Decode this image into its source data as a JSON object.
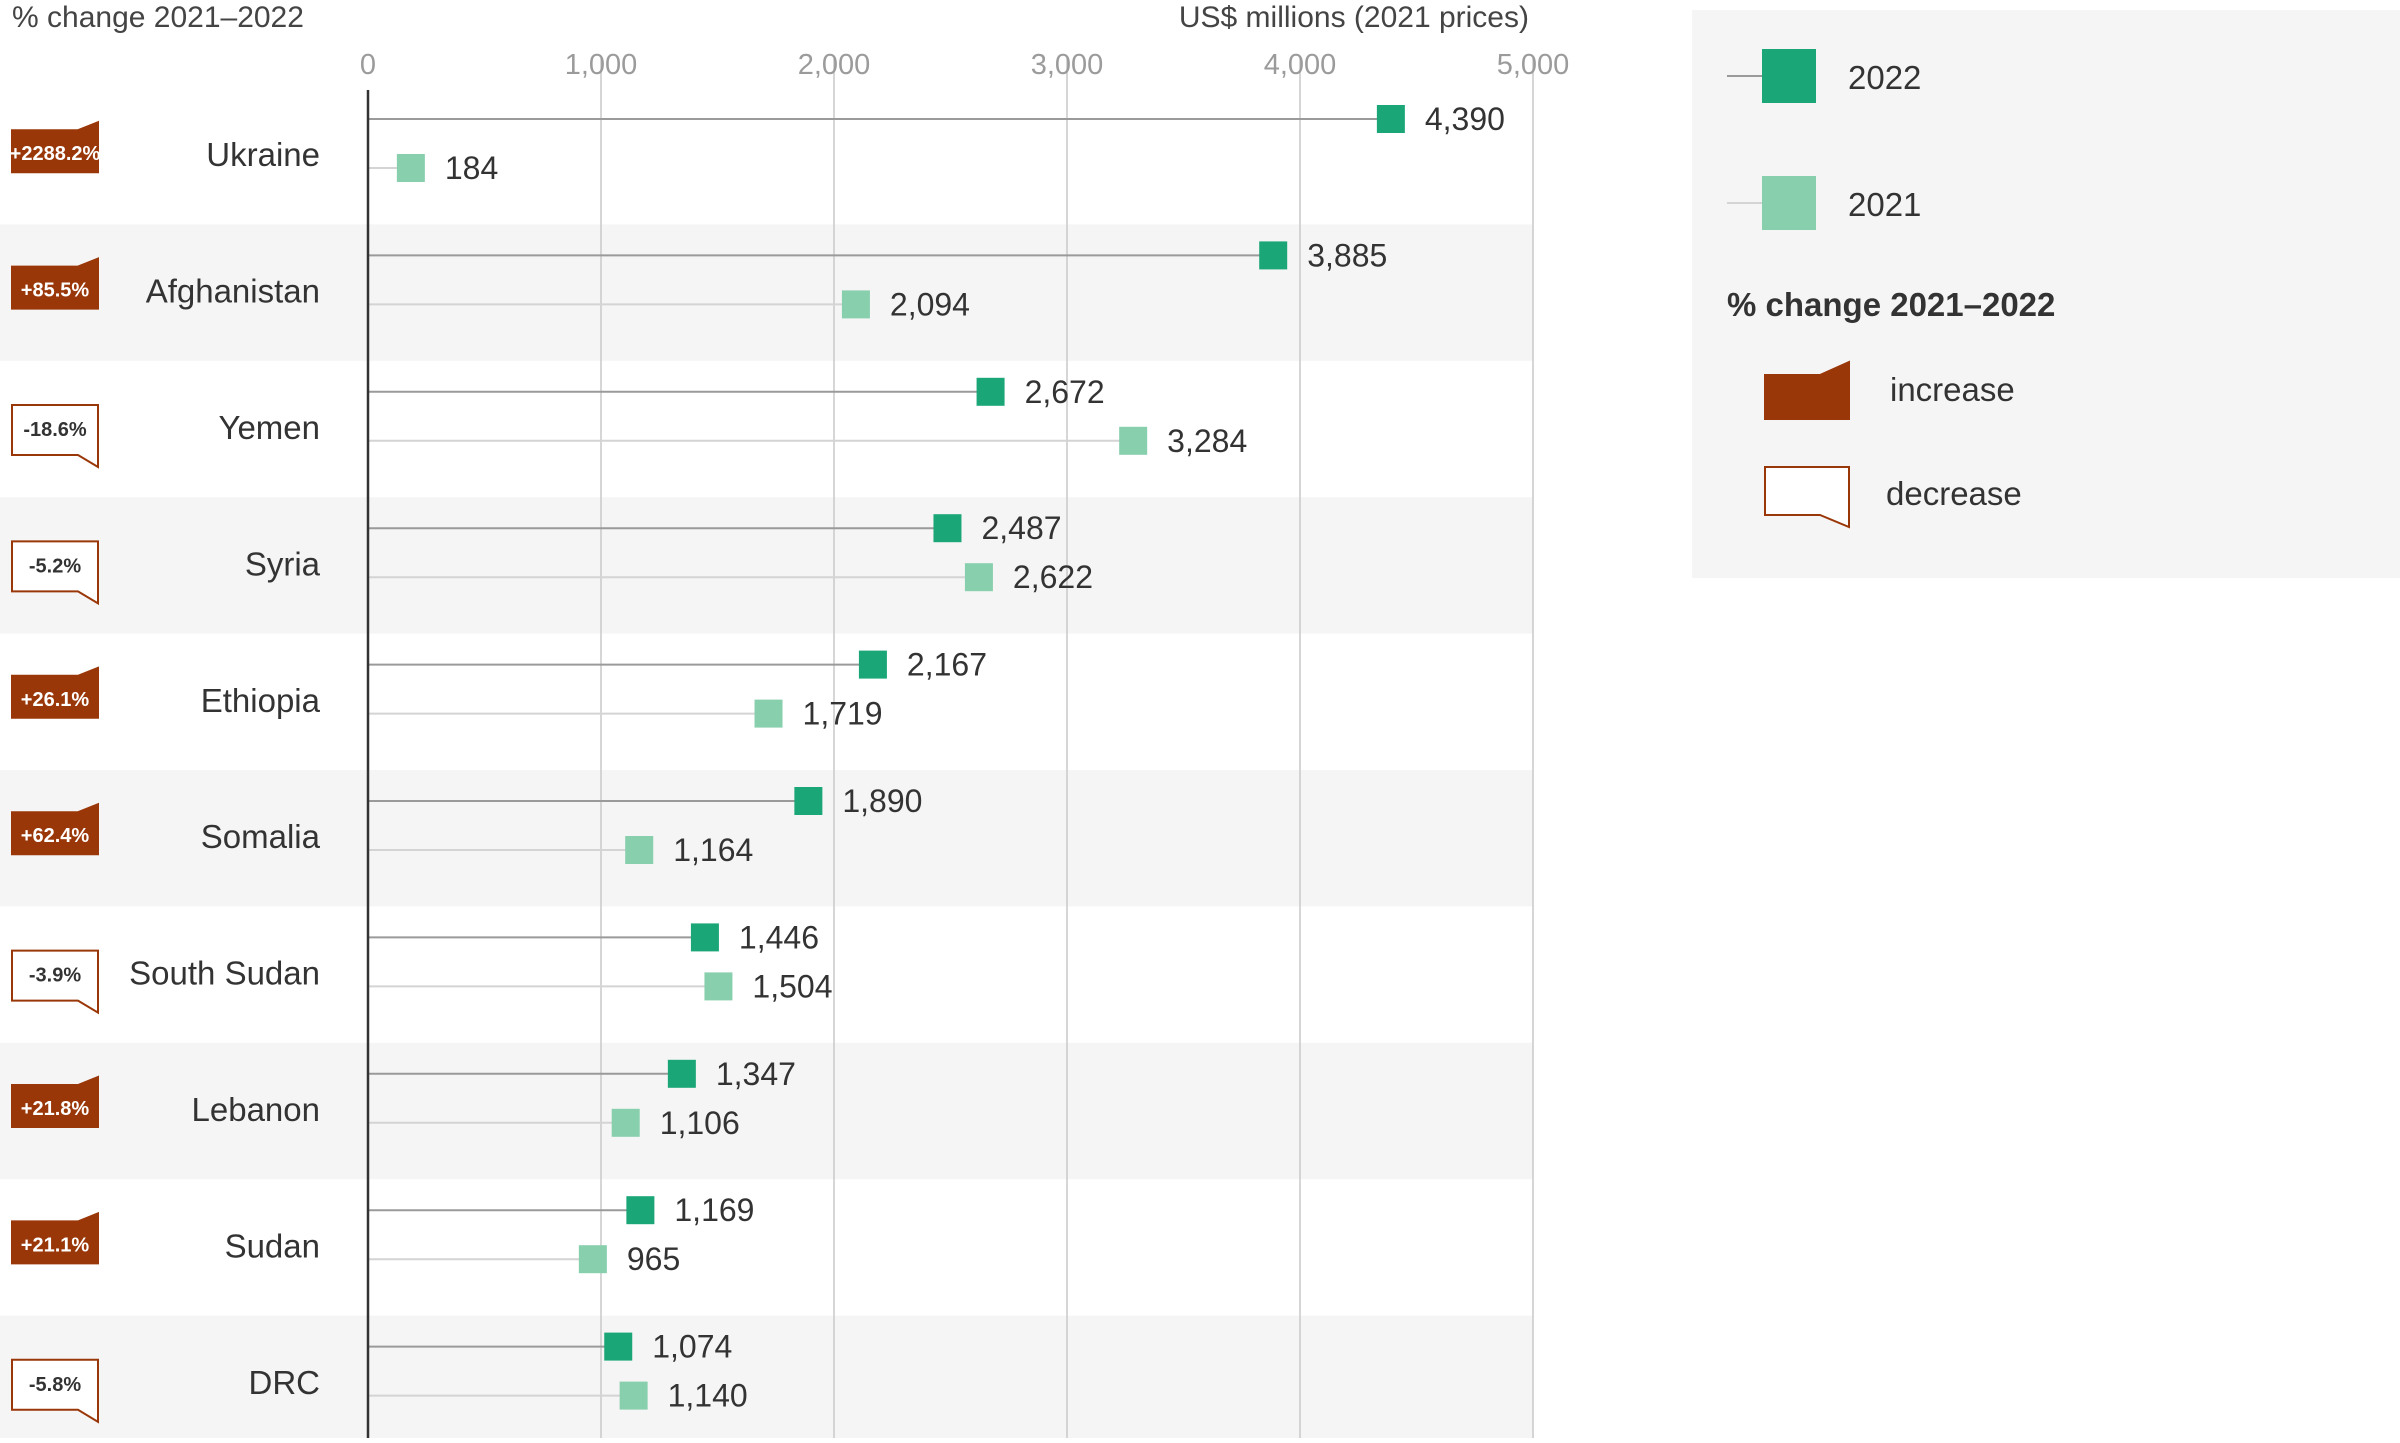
{
  "chart_data": {
    "type": "dot-comparison",
    "left_header": "% change 2021–2022",
    "axis_title": "US$ millions (2021 prices)",
    "xlim": [
      0,
      5000
    ],
    "ticks": [
      0,
      1000,
      2000,
      3000,
      4000,
      5000
    ],
    "tick_labels": [
      "0",
      "1,000",
      "2,000",
      "3,000",
      "4,000",
      "5,000"
    ],
    "grid": true,
    "legend_position": "right",
    "series": [
      {
        "name": "2022",
        "color": "#1ba677"
      },
      {
        "name": "2021",
        "color": "#88cfad"
      }
    ],
    "legend_change_title": "% change 2021–2022",
    "legend_change_items": [
      {
        "type": "increase",
        "label": "increase",
        "color": "#9a3708"
      },
      {
        "type": "decrease",
        "label": "decrease",
        "color": "#9a3708"
      }
    ],
    "rows": [
      {
        "country": "Ukraine",
        "change": "+2288.2%",
        "type": "increase",
        "v2022": 4390,
        "v2022_label": "4,390",
        "v2021": 184,
        "v2021_label": "184"
      },
      {
        "country": "Afghanistan",
        "change": "+85.5%",
        "type": "increase",
        "v2022": 3885,
        "v2022_label": "3,885",
        "v2021": 2094,
        "v2021_label": "2,094"
      },
      {
        "country": "Yemen",
        "change": "-18.6%",
        "type": "decrease",
        "v2022": 2672,
        "v2022_label": "2,672",
        "v2021": 3284,
        "v2021_label": "3,284"
      },
      {
        "country": "Syria",
        "change": "-5.2%",
        "type": "decrease",
        "v2022": 2487,
        "v2022_label": "2,487",
        "v2021": 2622,
        "v2021_label": "2,622"
      },
      {
        "country": "Ethiopia",
        "change": "+26.1%",
        "type": "increase",
        "v2022": 2167,
        "v2022_label": "2,167",
        "v2021": 1719,
        "v2021_label": "1,719"
      },
      {
        "country": "Somalia",
        "change": "+62.4%",
        "type": "increase",
        "v2022": 1890,
        "v2022_label": "1,890",
        "v2021": 1164,
        "v2021_label": "1,164"
      },
      {
        "country": "South Sudan",
        "change": "-3.9%",
        "type": "decrease",
        "v2022": 1446,
        "v2022_label": "1,446",
        "v2021": 1504,
        "v2021_label": "1,504"
      },
      {
        "country": "Lebanon",
        "change": "+21.8%",
        "type": "increase",
        "v2022": 1347,
        "v2022_label": "1,347",
        "v2021": 1106,
        "v2021_label": "1,106"
      },
      {
        "country": "Sudan",
        "change": "+21.1%",
        "type": "increase",
        "v2022": 1169,
        "v2022_label": "1,169",
        "v2021": 965,
        "v2021_label": "965"
      },
      {
        "country": "DRC",
        "change": "-5.8%",
        "type": "decrease",
        "v2022": 1074,
        "v2022_label": "1,074",
        "v2021": 1140,
        "v2021_label": "1,140"
      }
    ]
  }
}
